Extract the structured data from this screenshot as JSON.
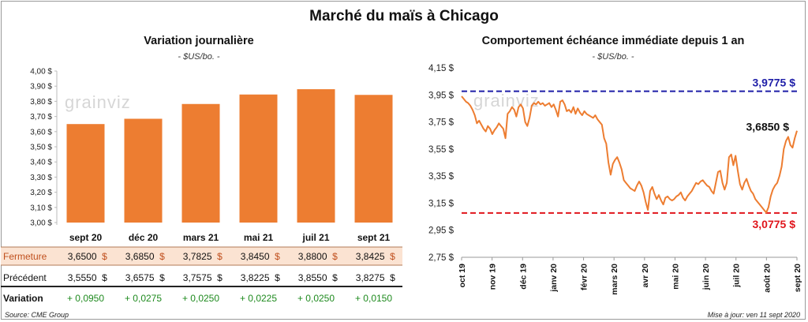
{
  "title": "Marché du maïs à Chicago",
  "watermark": "grainviz",
  "footer": {
    "source": "Source: CME Group",
    "updated": "Mise à jour: ven 11 sept 2020"
  },
  "colors": {
    "bar": "#ed7d31",
    "line": "#ed7d31",
    "max_line": "#1f1fa8",
    "min_line": "#e0151c",
    "positive": "#1e8a1e",
    "fermeture_bg": "#fbe3d2"
  },
  "left": {
    "title": "Variation journalière",
    "unit": "- $US/bo. -",
    "ytick_labels": [
      "3,00 $",
      "3,10 $",
      "3,20 $",
      "3,30 $",
      "3,40 $",
      "3,50 $",
      "3,60 $",
      "3,70 $",
      "3,80 $",
      "3,90 $",
      "4,00 $"
    ],
    "table": {
      "rows": [
        {
          "label": "Fermeture",
          "values": [
            "3,6500",
            "3,6850",
            "3,7825",
            "3,8450",
            "3,8800",
            "3,8425"
          ],
          "suffix": "$"
        },
        {
          "label": "Précédent",
          "values": [
            "3,5550",
            "3,6575",
            "3,7575",
            "3,8225",
            "3,8550",
            "3,8275"
          ],
          "suffix": "$"
        },
        {
          "label": "Variation",
          "values": [
            "+ 0,0950",
            "+ 0,0275",
            "+ 0,0250",
            "+ 0,0225",
            "+ 0,0250",
            "+ 0,0150"
          ],
          "suffix": ""
        }
      ]
    }
  },
  "right": {
    "title": "Comportement  échéance immédiate depuis 1 an",
    "unit": "- $US/bo. -",
    "ytick_labels": [
      "2,75 $",
      "2,95 $",
      "3,15 $",
      "3,35 $",
      "3,55 $",
      "3,75 $",
      "3,95 $",
      "4,15 $"
    ],
    "xtick_labels": [
      "oct 19",
      "nov 19",
      "déc 19",
      "janv 20",
      "févr 20",
      "mars 20",
      "avr 20",
      "mai 20",
      "juin 20",
      "juil 20",
      "août 20",
      "sept 20"
    ],
    "max_label": "3,9775 $",
    "min_label": "3,0775 $",
    "last_label": "3,6850 $"
  },
  "chart_data": [
    {
      "type": "bar",
      "title": "Variation journalière",
      "ylabel": "$US/bo.",
      "categories": [
        "sept 20",
        "déc 20",
        "mars 21",
        "mai 21",
        "juil 21",
        "sept 21"
      ],
      "values": [
        3.65,
        3.685,
        3.7825,
        3.845,
        3.88,
        3.8425
      ],
      "ylim": [
        3.0,
        4.0
      ],
      "grid": false
    },
    {
      "type": "line",
      "title": "Comportement  échéance immédiate depuis 1 an",
      "ylabel": "$US/bo.",
      "ylim": [
        2.75,
        4.15
      ],
      "reference_lines": [
        {
          "label": "3,9775 $",
          "value": 3.9775
        },
        {
          "label": "3,0775 $",
          "value": 3.0775
        }
      ],
      "last_value": 3.685,
      "series": [
        {
          "values": [
            3.94,
            3.92,
            3.9,
            3.89,
            3.87,
            3.84,
            3.8,
            3.74,
            3.76,
            3.73,
            3.7,
            3.68,
            3.72,
            3.7,
            3.66,
            3.69,
            3.71,
            3.74,
            3.72,
            3.7,
            3.63,
            3.81,
            3.83,
            3.86,
            3.84,
            3.79,
            3.86,
            3.88,
            3.85,
            3.75,
            3.72,
            3.78,
            3.87,
            3.89,
            3.88,
            3.9,
            3.88,
            3.89,
            3.87,
            3.88,
            3.89,
            3.86,
            3.88,
            3.84,
            3.79,
            3.9,
            3.91,
            3.88,
            3.83,
            3.84,
            3.82,
            3.86,
            3.81,
            3.85,
            3.82,
            3.8,
            3.83,
            3.81,
            3.8,
            3.79,
            3.78,
            3.8,
            3.77,
            3.75,
            3.73,
            3.63,
            3.59,
            3.45,
            3.36,
            3.44,
            3.47,
            3.49,
            3.45,
            3.4,
            3.32,
            3.3,
            3.28,
            3.26,
            3.25,
            3.24,
            3.28,
            3.31,
            3.28,
            3.23,
            3.16,
            3.1,
            3.24,
            3.27,
            3.22,
            3.18,
            3.21,
            3.17,
            3.14,
            3.19,
            3.2,
            3.18,
            3.17,
            3.18,
            3.2,
            3.21,
            3.23,
            3.19,
            3.17,
            3.2,
            3.22,
            3.24,
            3.27,
            3.3,
            3.29,
            3.31,
            3.32,
            3.3,
            3.28,
            3.27,
            3.24,
            3.22,
            3.3,
            3.38,
            3.39,
            3.3,
            3.25,
            3.3,
            3.49,
            3.51,
            3.43,
            3.5,
            3.39,
            3.29,
            3.25,
            3.3,
            3.33,
            3.28,
            3.24,
            3.22,
            3.18,
            3.16,
            3.14,
            3.12,
            3.1,
            3.08,
            3.12,
            3.2,
            3.25,
            3.28,
            3.3,
            3.35,
            3.42,
            3.55,
            3.61,
            3.64,
            3.58,
            3.56,
            3.63,
            3.685
          ]
        }
      ]
    }
  ]
}
